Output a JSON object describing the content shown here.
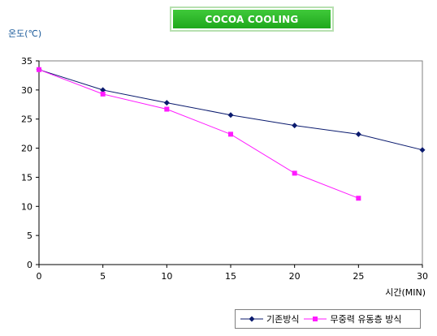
{
  "chart_data": {
    "type": "line",
    "title": "COCOA COOLING",
    "ylabel": "온도(℃)",
    "xlabel": "시간(MIN)",
    "xlim": [
      0,
      30
    ],
    "ylim": [
      0,
      35
    ],
    "xticks": [
      0,
      5,
      10,
      15,
      20,
      25,
      30
    ],
    "yticks": [
      0,
      5,
      10,
      15,
      20,
      25,
      30,
      35
    ],
    "grid": false,
    "legend_position": "bottom-right",
    "series": [
      {
        "name": "기존방식",
        "color": "#0a1a6e",
        "marker": "diamond",
        "x": [
          0,
          5,
          10,
          15,
          20,
          25,
          30
        ],
        "y": [
          33.5,
          30.0,
          27.8,
          25.7,
          23.9,
          22.4,
          19.7
        ]
      },
      {
        "name": "무중력 유동층 방식",
        "color": "#ff1aff",
        "marker": "square",
        "x": [
          0,
          5,
          10,
          15,
          20,
          25
        ],
        "y": [
          33.5,
          29.3,
          26.7,
          22.4,
          15.7,
          11.4
        ]
      }
    ]
  }
}
